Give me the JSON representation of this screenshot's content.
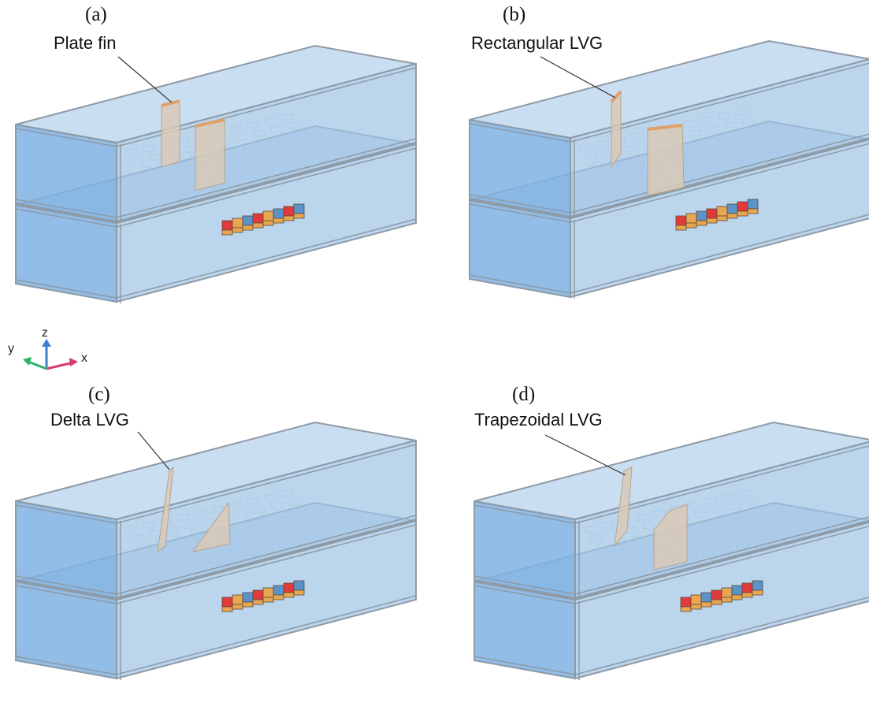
{
  "panels": [
    {
      "tag": "(a)",
      "label": "Plate fin"
    },
    {
      "tag": "(b)",
      "label": "Rectangular LVG"
    },
    {
      "tag": "(c)",
      "label": "Delta LVG"
    },
    {
      "tag": "(d)",
      "label": "Trapezoidal LVG"
    }
  ],
  "axes": {
    "z": "z",
    "y": "y",
    "x": "x"
  },
  "colors": {
    "channel_fill": "#9ec3e6",
    "channel_side": "#7fb2e3",
    "channel_edge": "#8e9aa6",
    "fin_fill": "#d9c9b6",
    "fin_edge": "#e0a06a",
    "cell_red": "#e23a3a",
    "cell_blue": "#5b92c8",
    "cell_orange": "#e8a650",
    "axis_x": "#d63a6e",
    "axis_y": "#2bb46c",
    "axis_z": "#3d7fd0"
  }
}
